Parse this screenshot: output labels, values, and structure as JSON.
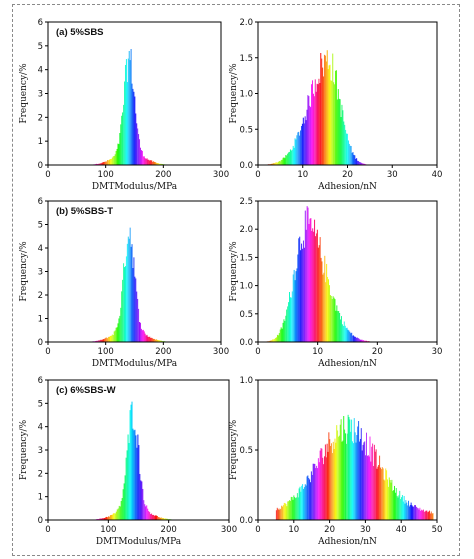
{
  "figure": {
    "colors": {
      "axis": "#000000",
      "frame": "#8a8a8a",
      "background": "#ffffff"
    },
    "palette_note": "rainbow histogram bars (red-yellow-green-cyan-blue-magenta)"
  },
  "chart_data": [
    {
      "type": "bar",
      "panel": "top-left",
      "title": "(a) 5%SBS",
      "xlabel": "DMTModulus/MPa",
      "ylabel": "Frequency/%",
      "xlim": [
        0,
        300
      ],
      "ylim": [
        0,
        6
      ],
      "xticks": [
        0,
        100,
        200,
        300
      ],
      "yticks": [
        0,
        1,
        2,
        3,
        4,
        5,
        6
      ],
      "distribution": {
        "shape": "normal",
        "center": 140,
        "spread": 9,
        "peak": 4.6,
        "from": 10,
        "to": 270,
        "bins": 160
      }
    },
    {
      "type": "bar",
      "panel": "top-right",
      "title": "",
      "xlabel": "Adhesion/nN",
      "ylabel": "Frequency/%",
      "xlim": [
        0,
        40
      ],
      "ylim": [
        0,
        2.0
      ],
      "xticks": [
        0,
        10,
        20,
        30,
        40
      ],
      "yticks": [
        0.0,
        0.5,
        1.0,
        1.5,
        2.0
      ],
      "distribution": {
        "shape": "skewed",
        "center": 15.5,
        "spread_left": 4.2,
        "spread_right": 2.7,
        "peak": 1.5,
        "from": 2,
        "to": 39,
        "bins": 180
      }
    },
    {
      "type": "bar",
      "panel": "middle-left",
      "title": "(b) 5%SBS-T",
      "xlabel": "DMTModulus/MPa",
      "ylabel": "Frequency/%",
      "xlim": [
        0,
        300
      ],
      "ylim": [
        0,
        6
      ],
      "xticks": [
        0,
        100,
        200,
        300
      ],
      "yticks": [
        0,
        1,
        2,
        3,
        4,
        5,
        6
      ],
      "distribution": {
        "shape": "normal",
        "center": 140,
        "spread": 9,
        "peak": 4.9,
        "from": 10,
        "to": 270,
        "bins": 160
      }
    },
    {
      "type": "bar",
      "panel": "middle-right",
      "title": "",
      "xlabel": "Adhesion/nN",
      "ylabel": "Frequency/%",
      "xlim": [
        0,
        30
      ],
      "ylim": [
        0,
        2.5
      ],
      "xticks": [
        0,
        10,
        20,
        30
      ],
      "yticks": [
        0.0,
        0.5,
        1.0,
        1.5,
        2.0,
        2.5
      ],
      "distribution": {
        "shape": "skewed",
        "center": 8,
        "spread_left": 2.0,
        "spread_right": 3.3,
        "peak": 2.1,
        "from": 1,
        "to": 29,
        "bins": 180
      }
    },
    {
      "type": "bar",
      "panel": "bottom-left",
      "title": "(c) 6%SBS-W",
      "xlabel": "DMTModulus/MPa",
      "ylabel": "Frequency/%",
      "xlim": [
        0,
        300
      ],
      "ylim": [
        0,
        6
      ],
      "xticks": [
        0,
        100,
        200,
        300
      ],
      "yticks": [
        0,
        1,
        2,
        3,
        4,
        5,
        6
      ],
      "distribution": {
        "shape": "normal",
        "center": 140,
        "spread": 9,
        "peak": 4.8,
        "from": 10,
        "to": 270,
        "bins": 160
      }
    },
    {
      "type": "bar",
      "panel": "bottom-right",
      "title": "",
      "xlabel": "Adhesion/nN",
      "ylabel": "Frequency/%",
      "xlim": [
        0,
        50
      ],
      "ylim": [
        0,
        1.0
      ],
      "xticks": [
        0,
        10,
        20,
        30,
        40,
        50
      ],
      "yticks": [
        0.0,
        0.5,
        1.0
      ],
      "distribution": {
        "shape": "normal",
        "center": 25,
        "spread": 8,
        "peak": 0.68,
        "from": 5,
        "to": 49,
        "bins": 180
      }
    }
  ]
}
